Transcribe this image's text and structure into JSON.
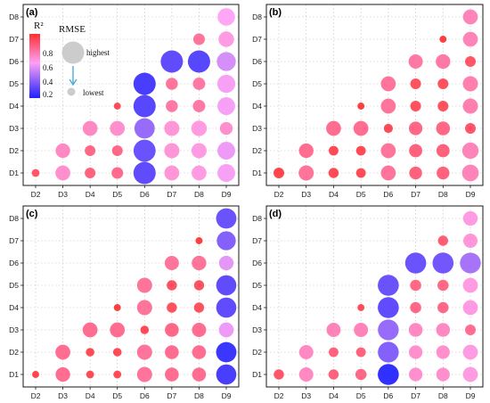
{
  "chart_data": {
    "type": "scatter",
    "x_categories": [
      "D2",
      "D3",
      "D4",
      "D5",
      "D6",
      "D7",
      "D8",
      "D9"
    ],
    "y_categories": [
      "D1",
      "D2",
      "D3",
      "D4",
      "D5",
      "D6",
      "D7",
      "D8"
    ],
    "encoding": "bubble size = RMSE (relative, 0-1); bubble color = R²",
    "colorscale": {
      "low": "#2020ff",
      "mid": "#ff9ff5",
      "high": "#ff3030"
    },
    "legend": {
      "r2_title": "R²",
      "r2_ticks": [
        "0.8",
        "0.6",
        "0.4",
        "0.2"
      ],
      "rmse_title": "RMSE",
      "rmse_high": "highest",
      "rmse_low": "lowest"
    },
    "panels": [
      {
        "label": "(a)",
        "points": [
          {
            "x": "D2",
            "y": "D1",
            "rmse": 0.08,
            "r2": 0.82
          },
          {
            "x": "D3",
            "y": "D1",
            "rmse": 0.4,
            "r2": 0.62
          },
          {
            "x": "D4",
            "y": "D1",
            "rmse": 0.18,
            "r2": 0.78
          },
          {
            "x": "D5",
            "y": "D1",
            "rmse": 0.22,
            "r2": 0.75
          },
          {
            "x": "D6",
            "y": "D1",
            "rmse": 1.0,
            "r2": 0.2
          },
          {
            "x": "D7",
            "y": "D1",
            "rmse": 0.4,
            "r2": 0.6
          },
          {
            "x": "D8",
            "y": "D1",
            "rmse": 0.4,
            "r2": 0.58
          },
          {
            "x": "D9",
            "y": "D1",
            "rmse": 0.6,
            "r2": 0.52
          },
          {
            "x": "D3",
            "y": "D2",
            "rmse": 0.38,
            "r2": 0.64
          },
          {
            "x": "D4",
            "y": "D2",
            "rmse": 0.18,
            "r2": 0.76
          },
          {
            "x": "D5",
            "y": "D2",
            "rmse": 0.18,
            "r2": 0.76
          },
          {
            "x": "D6",
            "y": "D2",
            "rmse": 0.98,
            "r2": 0.22
          },
          {
            "x": "D7",
            "y": "D2",
            "rmse": 0.42,
            "r2": 0.6
          },
          {
            "x": "D8",
            "y": "D2",
            "rmse": 0.42,
            "r2": 0.58
          },
          {
            "x": "D9",
            "y": "D2",
            "rmse": 0.6,
            "r2": 0.5
          },
          {
            "x": "D4",
            "y": "D3",
            "rmse": 0.4,
            "r2": 0.64
          },
          {
            "x": "D5",
            "y": "D3",
            "rmse": 0.4,
            "r2": 0.62
          },
          {
            "x": "D6",
            "y": "D3",
            "rmse": 0.82,
            "r2": 0.32
          },
          {
            "x": "D7",
            "y": "D3",
            "rmse": 0.42,
            "r2": 0.6
          },
          {
            "x": "D8",
            "y": "D3",
            "rmse": 0.44,
            "r2": 0.58
          },
          {
            "x": "D9",
            "y": "D3",
            "rmse": 0.28,
            "r2": 0.62
          },
          {
            "x": "D5",
            "y": "D4",
            "rmse": 0.06,
            "r2": 0.85
          },
          {
            "x": "D6",
            "y": "D4",
            "rmse": 1.0,
            "r2": 0.18
          },
          {
            "x": "D7",
            "y": "D4",
            "rmse": 0.24,
            "r2": 0.7
          },
          {
            "x": "D8",
            "y": "D4",
            "rmse": 0.26,
            "r2": 0.7
          },
          {
            "x": "D9",
            "y": "D4",
            "rmse": 0.6,
            "r2": 0.52
          },
          {
            "x": "D6",
            "y": "D5",
            "rmse": 1.0,
            "r2": 0.15
          },
          {
            "x": "D7",
            "y": "D5",
            "rmse": 0.24,
            "r2": 0.72
          },
          {
            "x": "D8",
            "y": "D5",
            "rmse": 0.26,
            "r2": 0.7
          },
          {
            "x": "D9",
            "y": "D5",
            "rmse": 0.62,
            "r2": 0.52
          },
          {
            "x": "D7",
            "y": "D6",
            "rmse": 1.0,
            "r2": 0.2
          },
          {
            "x": "D8",
            "y": "D6",
            "rmse": 1.0,
            "r2": 0.18
          },
          {
            "x": "D9",
            "y": "D6",
            "rmse": 0.7,
            "r2": 0.45
          },
          {
            "x": "D8",
            "y": "D7",
            "rmse": 0.22,
            "r2": 0.72
          },
          {
            "x": "D9",
            "y": "D7",
            "rmse": 0.44,
            "r2": 0.58
          },
          {
            "x": "D9",
            "y": "D8",
            "rmse": 0.58,
            "r2": 0.54
          }
        ]
      },
      {
        "label": "(b)",
        "points": [
          {
            "x": "D2",
            "y": "D1",
            "rmse": 0.18,
            "r2": 0.88
          },
          {
            "x": "D3",
            "y": "D1",
            "rmse": 0.42,
            "r2": 0.72
          },
          {
            "x": "D4",
            "y": "D1",
            "rmse": 0.16,
            "r2": 0.86
          },
          {
            "x": "D5",
            "y": "D1",
            "rmse": 0.14,
            "r2": 0.86
          },
          {
            "x": "D6",
            "y": "D1",
            "rmse": 0.4,
            "r2": 0.72
          },
          {
            "x": "D7",
            "y": "D1",
            "rmse": 0.28,
            "r2": 0.78
          },
          {
            "x": "D8",
            "y": "D1",
            "rmse": 0.28,
            "r2": 0.78
          },
          {
            "x": "D9",
            "y": "D1",
            "rmse": 0.52,
            "r2": 0.66
          },
          {
            "x": "D3",
            "y": "D2",
            "rmse": 0.38,
            "r2": 0.74
          },
          {
            "x": "D4",
            "y": "D2",
            "rmse": 0.14,
            "r2": 0.86
          },
          {
            "x": "D5",
            "y": "D2",
            "rmse": 0.14,
            "r2": 0.86
          },
          {
            "x": "D6",
            "y": "D2",
            "rmse": 0.4,
            "r2": 0.72
          },
          {
            "x": "D7",
            "y": "D2",
            "rmse": 0.3,
            "r2": 0.78
          },
          {
            "x": "D8",
            "y": "D2",
            "rmse": 0.3,
            "r2": 0.78
          },
          {
            "x": "D9",
            "y": "D2",
            "rmse": 0.5,
            "r2": 0.66
          },
          {
            "x": "D4",
            "y": "D3",
            "rmse": 0.4,
            "r2": 0.74
          },
          {
            "x": "D5",
            "y": "D3",
            "rmse": 0.4,
            "r2": 0.74
          },
          {
            "x": "D6",
            "y": "D3",
            "rmse": 0.12,
            "r2": 0.86
          },
          {
            "x": "D7",
            "y": "D3",
            "rmse": 0.32,
            "r2": 0.76
          },
          {
            "x": "D8",
            "y": "D3",
            "rmse": 0.34,
            "r2": 0.76
          },
          {
            "x": "D9",
            "y": "D3",
            "rmse": 0.18,
            "r2": 0.82
          },
          {
            "x": "D5",
            "y": "D4",
            "rmse": 0.06,
            "r2": 0.9
          },
          {
            "x": "D6",
            "y": "D4",
            "rmse": 0.4,
            "r2": 0.72
          },
          {
            "x": "D7",
            "y": "D4",
            "rmse": 0.18,
            "r2": 0.84
          },
          {
            "x": "D8",
            "y": "D4",
            "rmse": 0.18,
            "r2": 0.84
          },
          {
            "x": "D9",
            "y": "D4",
            "rmse": 0.42,
            "r2": 0.68
          },
          {
            "x": "D6",
            "y": "D5",
            "rmse": 0.4,
            "r2": 0.72
          },
          {
            "x": "D7",
            "y": "D5",
            "rmse": 0.18,
            "r2": 0.84
          },
          {
            "x": "D8",
            "y": "D5",
            "rmse": 0.18,
            "r2": 0.84
          },
          {
            "x": "D9",
            "y": "D5",
            "rmse": 0.42,
            "r2": 0.68
          },
          {
            "x": "D7",
            "y": "D6",
            "rmse": 0.36,
            "r2": 0.7
          },
          {
            "x": "D8",
            "y": "D6",
            "rmse": 0.38,
            "r2": 0.7
          },
          {
            "x": "D9",
            "y": "D6",
            "rmse": 0.18,
            "r2": 0.82
          },
          {
            "x": "D8",
            "y": "D7",
            "rmse": 0.06,
            "r2": 0.92
          },
          {
            "x": "D9",
            "y": "D7",
            "rmse": 0.4,
            "r2": 0.66
          },
          {
            "x": "D9",
            "y": "D8",
            "rmse": 0.4,
            "r2": 0.66
          }
        ]
      },
      {
        "label": "(c)",
        "points": [
          {
            "x": "D2",
            "y": "D1",
            "rmse": 0.06,
            "r2": 0.88
          },
          {
            "x": "D3",
            "y": "D1",
            "rmse": 0.38,
            "r2": 0.74
          },
          {
            "x": "D4",
            "y": "D1",
            "rmse": 0.08,
            "r2": 0.86
          },
          {
            "x": "D5",
            "y": "D1",
            "rmse": 0.08,
            "r2": 0.86
          },
          {
            "x": "D6",
            "y": "D1",
            "rmse": 0.42,
            "r2": 0.72
          },
          {
            "x": "D7",
            "y": "D1",
            "rmse": 0.34,
            "r2": 0.74
          },
          {
            "x": "D8",
            "y": "D1",
            "rmse": 0.34,
            "r2": 0.74
          },
          {
            "x": "D9",
            "y": "D1",
            "rmse": 0.8,
            "r2": 0.15
          },
          {
            "x": "D3",
            "y": "D2",
            "rmse": 0.4,
            "r2": 0.74
          },
          {
            "x": "D4",
            "y": "D2",
            "rmse": 0.1,
            "r2": 0.86
          },
          {
            "x": "D5",
            "y": "D2",
            "rmse": 0.1,
            "r2": 0.86
          },
          {
            "x": "D6",
            "y": "D2",
            "rmse": 0.42,
            "r2": 0.72
          },
          {
            "x": "D7",
            "y": "D2",
            "rmse": 0.34,
            "r2": 0.74
          },
          {
            "x": "D8",
            "y": "D2",
            "rmse": 0.34,
            "r2": 0.74
          },
          {
            "x": "D9",
            "y": "D2",
            "rmse": 0.82,
            "r2": 0.12
          },
          {
            "x": "D4",
            "y": "D3",
            "rmse": 0.4,
            "r2": 0.74
          },
          {
            "x": "D5",
            "y": "D3",
            "rmse": 0.4,
            "r2": 0.74
          },
          {
            "x": "D6",
            "y": "D3",
            "rmse": 0.1,
            "r2": 0.86
          },
          {
            "x": "D7",
            "y": "D3",
            "rmse": 0.34,
            "r2": 0.76
          },
          {
            "x": "D8",
            "y": "D3",
            "rmse": 0.36,
            "r2": 0.74
          },
          {
            "x": "D9",
            "y": "D3",
            "rmse": 0.4,
            "r2": 0.5
          },
          {
            "x": "D5",
            "y": "D4",
            "rmse": 0.06,
            "r2": 0.9
          },
          {
            "x": "D6",
            "y": "D4",
            "rmse": 0.42,
            "r2": 0.72
          },
          {
            "x": "D7",
            "y": "D4",
            "rmse": 0.16,
            "r2": 0.84
          },
          {
            "x": "D8",
            "y": "D4",
            "rmse": 0.16,
            "r2": 0.84
          },
          {
            "x": "D9",
            "y": "D4",
            "rmse": 0.8,
            "r2": 0.2
          },
          {
            "x": "D6",
            "y": "D5",
            "rmse": 0.42,
            "r2": 0.72
          },
          {
            "x": "D7",
            "y": "D5",
            "rmse": 0.16,
            "r2": 0.84
          },
          {
            "x": "D8",
            "y": "D5",
            "rmse": 0.16,
            "r2": 0.84
          },
          {
            "x": "D9",
            "y": "D5",
            "rmse": 0.8,
            "r2": 0.2
          },
          {
            "x": "D7",
            "y": "D6",
            "rmse": 0.36,
            "r2": 0.72
          },
          {
            "x": "D8",
            "y": "D6",
            "rmse": 0.38,
            "r2": 0.72
          },
          {
            "x": "D9",
            "y": "D6",
            "rmse": 0.38,
            "r2": 0.48
          },
          {
            "x": "D8",
            "y": "D7",
            "rmse": 0.06,
            "r2": 0.92
          },
          {
            "x": "D9",
            "y": "D7",
            "rmse": 0.7,
            "r2": 0.28
          },
          {
            "x": "D9",
            "y": "D8",
            "rmse": 0.82,
            "r2": 0.22
          }
        ]
      },
      {
        "label": "(d)",
        "points": [
          {
            "x": "D2",
            "y": "D1",
            "rmse": 0.16,
            "r2": 0.82
          },
          {
            "x": "D3",
            "y": "D1",
            "rmse": 0.36,
            "r2": 0.64
          },
          {
            "x": "D4",
            "y": "D1",
            "rmse": 0.16,
            "r2": 0.78
          },
          {
            "x": "D5",
            "y": "D1",
            "rmse": 0.2,
            "r2": 0.76
          },
          {
            "x": "D6",
            "y": "D1",
            "rmse": 0.88,
            "r2": 0.1
          },
          {
            "x": "D7",
            "y": "D1",
            "rmse": 0.32,
            "r2": 0.62
          },
          {
            "x": "D8",
            "y": "D1",
            "rmse": 0.32,
            "r2": 0.62
          },
          {
            "x": "D9",
            "y": "D1",
            "rmse": 0.4,
            "r2": 0.58
          },
          {
            "x": "D3",
            "y": "D2",
            "rmse": 0.36,
            "r2": 0.64
          },
          {
            "x": "D4",
            "y": "D2",
            "rmse": 0.14,
            "r2": 0.78
          },
          {
            "x": "D5",
            "y": "D2",
            "rmse": 0.14,
            "r2": 0.78
          },
          {
            "x": "D6",
            "y": "D2",
            "rmse": 0.86,
            "r2": 0.28
          },
          {
            "x": "D7",
            "y": "D2",
            "rmse": 0.32,
            "r2": 0.62
          },
          {
            "x": "D8",
            "y": "D2",
            "rmse": 0.32,
            "r2": 0.62
          },
          {
            "x": "D9",
            "y": "D2",
            "rmse": 0.4,
            "r2": 0.58
          },
          {
            "x": "D4",
            "y": "D3",
            "rmse": 0.36,
            "r2": 0.66
          },
          {
            "x": "D5",
            "y": "D3",
            "rmse": 0.36,
            "r2": 0.66
          },
          {
            "x": "D6",
            "y": "D3",
            "rmse": 0.86,
            "r2": 0.32
          },
          {
            "x": "D7",
            "y": "D3",
            "rmse": 0.34,
            "r2": 0.64
          },
          {
            "x": "D8",
            "y": "D3",
            "rmse": 0.34,
            "r2": 0.64
          },
          {
            "x": "D9",
            "y": "D3",
            "rmse": 0.18,
            "r2": 0.74
          },
          {
            "x": "D5",
            "y": "D4",
            "rmse": 0.06,
            "r2": 0.85
          },
          {
            "x": "D6",
            "y": "D4",
            "rmse": 0.88,
            "r2": 0.2
          },
          {
            "x": "D7",
            "y": "D4",
            "rmse": 0.2,
            "r2": 0.76
          },
          {
            "x": "D8",
            "y": "D4",
            "rmse": 0.2,
            "r2": 0.76
          },
          {
            "x": "D9",
            "y": "D4",
            "rmse": 0.4,
            "r2": 0.58
          },
          {
            "x": "D6",
            "y": "D5",
            "rmse": 0.88,
            "r2": 0.22
          },
          {
            "x": "D7",
            "y": "D5",
            "rmse": 0.2,
            "r2": 0.76
          },
          {
            "x": "D8",
            "y": "D5",
            "rmse": 0.2,
            "r2": 0.76
          },
          {
            "x": "D9",
            "y": "D5",
            "rmse": 0.4,
            "r2": 0.58
          },
          {
            "x": "D7",
            "y": "D6",
            "rmse": 0.88,
            "r2": 0.22
          },
          {
            "x": "D8",
            "y": "D6",
            "rmse": 0.88,
            "r2": 0.24
          },
          {
            "x": "D9",
            "y": "D6",
            "rmse": 0.86,
            "r2": 0.35
          },
          {
            "x": "D8",
            "y": "D7",
            "rmse": 0.16,
            "r2": 0.8
          },
          {
            "x": "D9",
            "y": "D7",
            "rmse": 0.36,
            "r2": 0.6
          },
          {
            "x": "D9",
            "y": "D8",
            "rmse": 0.38,
            "r2": 0.58
          }
        ]
      }
    ]
  }
}
